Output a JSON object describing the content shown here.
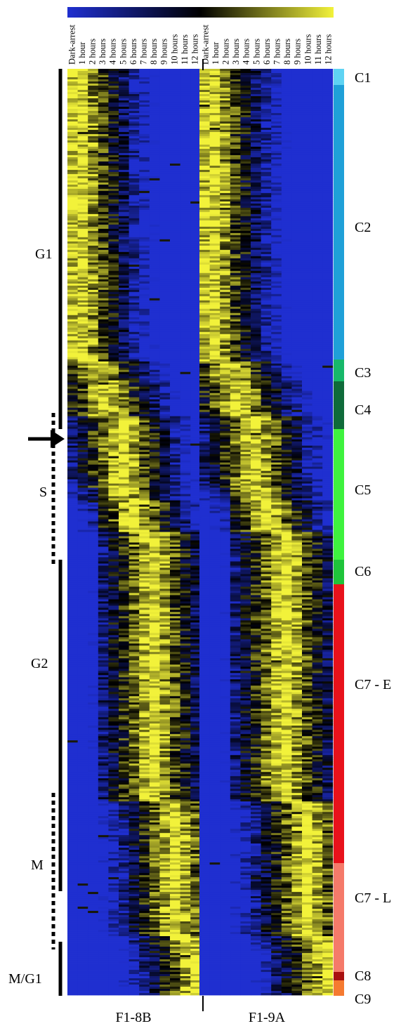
{
  "color_scale": {
    "low": "#1f2fd0",
    "mid": "#000000",
    "high": "#f2f23a"
  },
  "column_labels": [
    "Dark-arrest",
    "1 hour",
    "2 hours",
    "3 hours",
    "4 hours",
    "5 hours",
    "6 hours",
    "7 hours",
    "8 hours",
    "9 hours",
    "10 hours",
    "11 hours",
    "12 hours"
  ],
  "samples": [
    {
      "label": "F1-8B"
    },
    {
      "label": "F1-9A"
    }
  ],
  "phases": [
    {
      "label": "G1",
      "style": "solid"
    },
    {
      "label": "S",
      "style": "dotted"
    },
    {
      "label": "G2",
      "style": "solid"
    },
    {
      "label": "M",
      "style": "dotted"
    },
    {
      "label": "M/G1",
      "style": "solid"
    }
  ],
  "clusters": [
    {
      "label": "C1",
      "color": "#5fd3f3"
    },
    {
      "label": "C2",
      "color": "#1fa0d8"
    },
    {
      "label": "C3",
      "color": "#17b86a"
    },
    {
      "label": "C4",
      "color": "#0f6b3a"
    },
    {
      "label": "C5",
      "color": "#3ef23e"
    },
    {
      "label": "C6",
      "color": "#1fc43a"
    },
    {
      "label": "C7 - E",
      "color": "#e8121b"
    },
    {
      "label": "C7 - L",
      "color": "#f57a6a"
    },
    {
      "label": "C8",
      "color": "#a81010"
    },
    {
      "label": "C9",
      "color": "#f57a30"
    }
  ]
}
